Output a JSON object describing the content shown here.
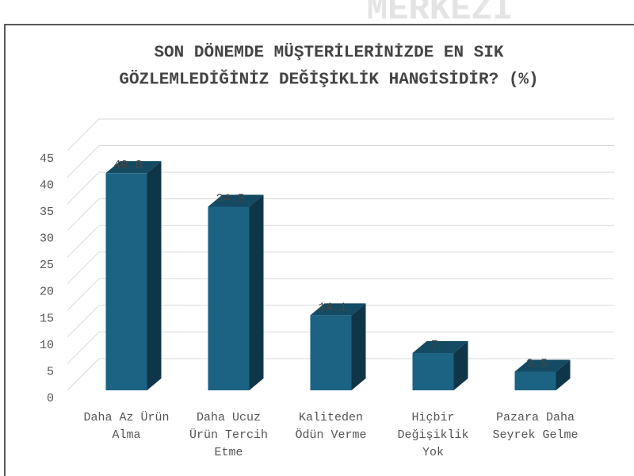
{
  "watermark": "MERKEZİ",
  "chart_data": {
    "type": "bar3d",
    "title": [
      "SON DÖNEMDE MÜŞTERİLERİNİZDE EN SIK",
      "GÖZLEMLEDİĞİNİZ DEĞİŞİKLİK HANGİSİDİR? (%)"
    ],
    "categories": [
      "Daha Az Ürün Alma",
      "Daha Ucuz Ürün Tercih Etme",
      "Kaliteden Ödün Verme",
      "Hiçbir Değişiklik Yok",
      "Pazara Daha Seyrek Gelme"
    ],
    "values": [
      40.8,
      34.5,
      14.1,
      7,
      3.5
    ],
    "color": "#1b6283",
    "ylim": [
      0,
      45
    ],
    "yticks": [
      0,
      5,
      10,
      15,
      20,
      25,
      30,
      35,
      40,
      45
    ],
    "grid": true
  }
}
